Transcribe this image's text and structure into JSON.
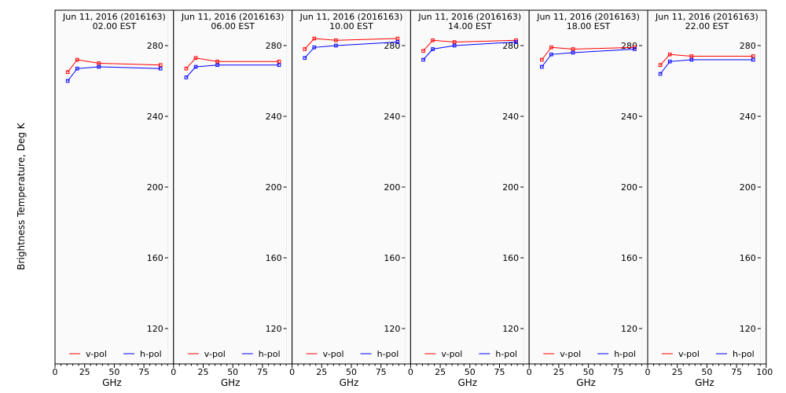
{
  "figure": {
    "ylabel": "Brightness Temperature, Deg K"
  },
  "colors": {
    "background": "#ffffff",
    "panel": "#fafafa",
    "v_pol": "#ff0000",
    "h_pol": "#0000ff",
    "axis": "#000000"
  },
  "chart_data": [
    {
      "type": "line",
      "title": "Jun 11, 2016 (2016163)",
      "subtitle": "02.00 EST",
      "xlabel": "GHz",
      "xlim": [
        0,
        100
      ],
      "ylim": [
        100,
        300
      ],
      "xticks": [
        0,
        25,
        50,
        75
      ],
      "yticks": [
        120,
        160,
        200,
        240,
        280
      ],
      "x": [
        10.7,
        18.7,
        37,
        89
      ],
      "series": [
        {
          "name": "v-pol",
          "values": [
            265,
            272,
            270,
            269
          ]
        },
        {
          "name": "h-pol",
          "values": [
            260,
            267,
            268,
            267
          ]
        }
      ]
    },
    {
      "type": "line",
      "title": "Jun 11, 2016 (2016163)",
      "subtitle": "06.00 EST",
      "xlabel": "GHz",
      "xlim": [
        0,
        100
      ],
      "ylim": [
        100,
        300
      ],
      "xticks": [
        0,
        25,
        50,
        75
      ],
      "yticks": [
        120,
        160,
        200,
        240,
        280
      ],
      "x": [
        10.7,
        18.7,
        37,
        89
      ],
      "series": [
        {
          "name": "v-pol",
          "values": [
            267,
            273,
            271,
            271
          ]
        },
        {
          "name": "h-pol",
          "values": [
            262,
            268,
            269,
            269
          ]
        }
      ]
    },
    {
      "type": "line",
      "title": "Jun 11, 2016 (2016163)",
      "subtitle": "10.00 EST",
      "xlabel": "GHz",
      "xlim": [
        0,
        100
      ],
      "ylim": [
        100,
        300
      ],
      "xticks": [
        0,
        25,
        50,
        75
      ],
      "yticks": [
        120,
        160,
        200,
        240,
        280
      ],
      "x": [
        10.7,
        18.7,
        37,
        89
      ],
      "series": [
        {
          "name": "v-pol",
          "values": [
            278,
            284,
            283,
            284
          ]
        },
        {
          "name": "h-pol",
          "values": [
            273,
            279,
            280,
            282
          ]
        }
      ]
    },
    {
      "type": "line",
      "title": "Jun 11, 2016 (2016163)",
      "subtitle": "14.00 EST",
      "xlabel": "GHz",
      "xlim": [
        0,
        100
      ],
      "ylim": [
        100,
        300
      ],
      "xticks": [
        0,
        25,
        50,
        75
      ],
      "yticks": [
        120,
        160,
        200,
        240,
        280
      ],
      "x": [
        10.7,
        18.7,
        37,
        89
      ],
      "series": [
        {
          "name": "v-pol",
          "values": [
            277,
            283,
            282,
            283
          ]
        },
        {
          "name": "h-pol",
          "values": [
            272,
            278,
            280,
            282
          ]
        }
      ]
    },
    {
      "type": "line",
      "title": "Jun 11, 2016 (2016163)",
      "subtitle": "18.00 EST",
      "xlabel": "GHz",
      "xlim": [
        0,
        100
      ],
      "ylim": [
        100,
        300
      ],
      "xticks": [
        0,
        25,
        50,
        75
      ],
      "yticks": [
        120,
        160,
        200,
        240,
        280
      ],
      "x": [
        10.7,
        18.7,
        37,
        89
      ],
      "series": [
        {
          "name": "v-pol",
          "values": [
            272,
            279,
            278,
            279
          ]
        },
        {
          "name": "h-pol",
          "values": [
            268,
            275,
            276,
            278
          ]
        }
      ]
    },
    {
      "type": "line",
      "title": "Jun 11, 2016 (2016163)",
      "subtitle": "22.00 EST",
      "xlabel": "GHz",
      "xlim": [
        0,
        100
      ],
      "ylim": [
        100,
        300
      ],
      "xticks": [
        0,
        25,
        50,
        75
      ],
      "yticks": [
        120,
        160,
        200,
        240,
        280
      ],
      "x": [
        10.7,
        18.7,
        37,
        89
      ],
      "series": [
        {
          "name": "v-pol",
          "values": [
            269,
            275,
            274,
            274
          ]
        },
        {
          "name": "h-pol",
          "values": [
            264,
            271,
            272,
            272
          ]
        }
      ]
    }
  ]
}
